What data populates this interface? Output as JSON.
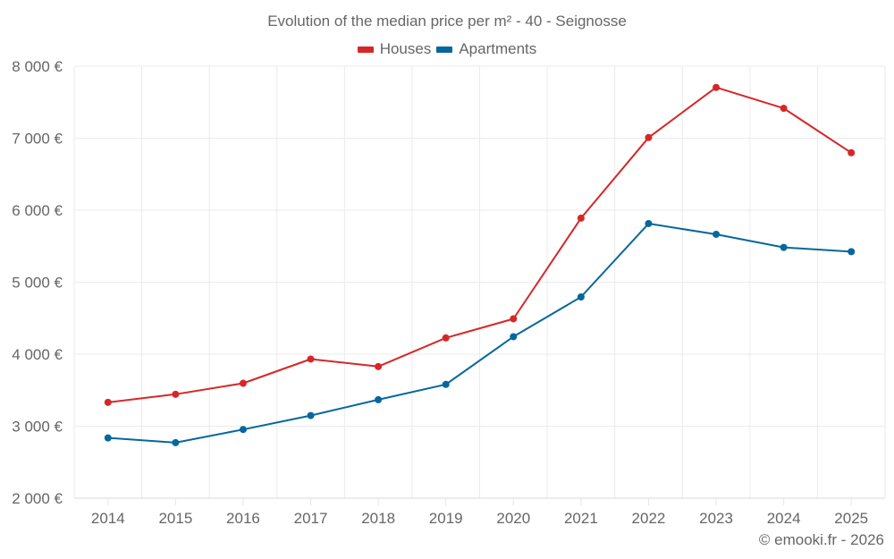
{
  "chart_data": {
    "type": "line",
    "title": "Evolution of the median price per m² - 40 - Seignosse",
    "xlabel": "",
    "ylabel": "",
    "categories": [
      "2014",
      "2015",
      "2016",
      "2017",
      "2018",
      "2019",
      "2020",
      "2021",
      "2022",
      "2023",
      "2024",
      "2025"
    ],
    "ylim": [
      2000,
      8000
    ],
    "yticks": [
      2000,
      3000,
      4000,
      5000,
      6000,
      7000,
      8000
    ],
    "ytick_labels": [
      "2 000 €",
      "3 000 €",
      "4 000 €",
      "5 000 €",
      "6 000 €",
      "7 000 €",
      "8 000 €"
    ],
    "grid": true,
    "legend_position": "top-center",
    "series": [
      {
        "name": "Houses",
        "color": "#d62728",
        "values": [
          3331,
          3443,
          3596,
          3932,
          3828,
          4226,
          4491,
          5889,
          7009,
          7705,
          7415,
          6798
        ]
      },
      {
        "name": "Apartments",
        "color": "#05679d",
        "values": [
          2837,
          2771,
          2954,
          3148,
          3368,
          3580,
          4243,
          4795,
          5814,
          5665,
          5483,
          5424
        ]
      }
    ],
    "credit": "© emooki.fr - 2026"
  }
}
